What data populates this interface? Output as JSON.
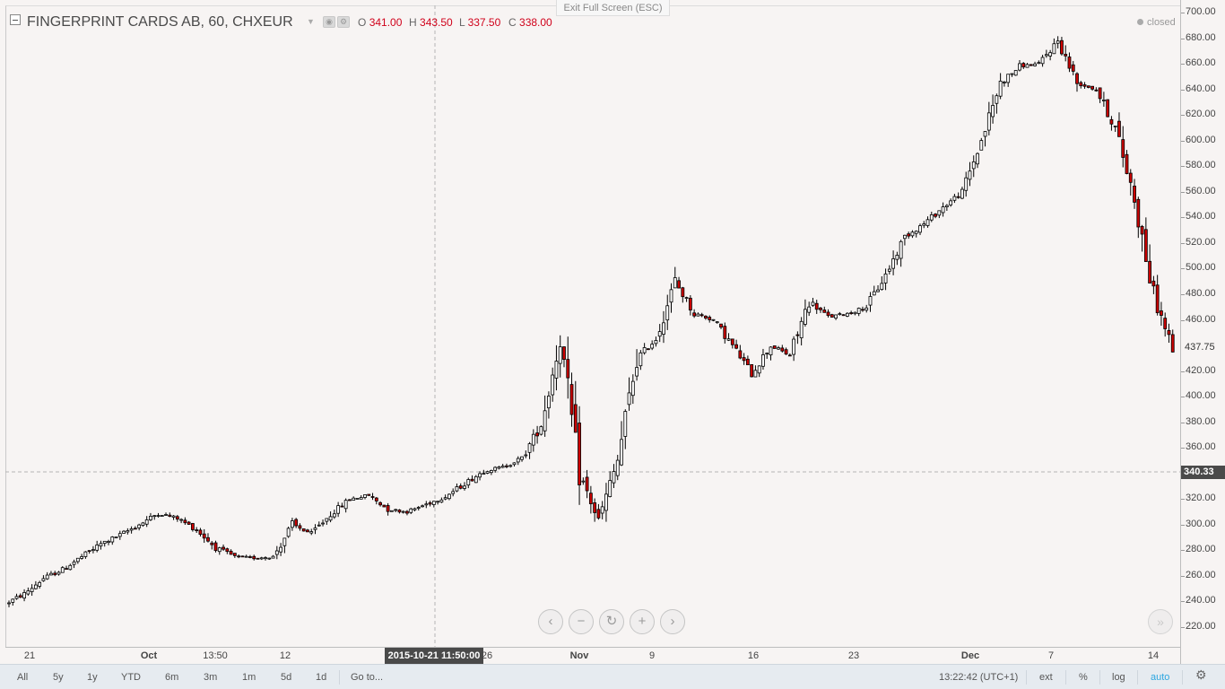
{
  "legend": {
    "title": "FINGERPRINT CARDS AB, 60, CHXEUR",
    "o_label": "O",
    "o_value": "341.00",
    "h_label": "H",
    "h_value": "343.50",
    "l_label": "L",
    "l_value": "337.50",
    "c_label": "C",
    "c_value": "338.00"
  },
  "exit_fullscreen": "Exit Full Screen (ESC)",
  "status": "closed",
  "price_axis": {
    "ticks": [
      "700.00",
      "680.00",
      "660.00",
      "640.00",
      "620.00",
      "600.00",
      "580.00",
      "560.00",
      "540.00",
      "520.00",
      "500.00",
      "480.00",
      "460.00",
      "420.00",
      "400.00",
      "380.00",
      "360.00",
      "320.00",
      "300.00",
      "280.00",
      "260.00",
      "240.00",
      "220.00"
    ],
    "current_price": "437.75",
    "crosshair_price": "340.33"
  },
  "time_axis": {
    "ticks": [
      {
        "label": "21",
        "bold": false
      },
      {
        "label": "Oct",
        "bold": true
      },
      {
        "label": "13:50",
        "bold": false
      },
      {
        "label": "12",
        "bold": false
      },
      {
        "label": "26",
        "bold": false
      },
      {
        "label": "Nov",
        "bold": true
      },
      {
        "label": "9",
        "bold": false
      },
      {
        "label": "16",
        "bold": false
      },
      {
        "label": "23",
        "bold": false
      },
      {
        "label": "Dec",
        "bold": true
      },
      {
        "label": "7",
        "bold": false
      },
      {
        "label": "14",
        "bold": false
      }
    ],
    "crosshair_time": "2015-10-21 11:50:00"
  },
  "bottom_bar": {
    "ranges": [
      "All",
      "5y",
      "1y",
      "YTD",
      "6m",
      "3m",
      "1m",
      "5d",
      "1d"
    ],
    "goto": "Go to...",
    "clock": "13:22:42 (UTC+1)",
    "ext": "ext",
    "percent": "%",
    "log": "log",
    "auto": "auto"
  },
  "nav": {
    "left": "‹",
    "zoom_out": "−",
    "reset": "↻",
    "zoom_in": "+",
    "right": "›",
    "scroll_end": "»"
  },
  "colors": {
    "up_fill": "#ffffff",
    "down_fill": "#cc0000",
    "wick": "#000000",
    "auto_active": "#2ea7e0",
    "crosshair": "#9a9a9a"
  },
  "chart_data": {
    "type": "candlestick",
    "symbol": "FINGERPRINT CARDS AB",
    "interval": "60",
    "currency": "CHXEUR",
    "ylim": [
      210,
      710
    ],
    "x_range": [
      "2015-09-21",
      "2015-12-15"
    ],
    "close_path": [
      [
        "2015-09-21",
        238
      ],
      [
        "2015-09-22",
        246
      ],
      [
        "2015-09-23",
        258
      ],
      [
        "2015-09-24",
        265
      ],
      [
        "2015-09-25",
        275
      ],
      [
        "2015-09-28",
        285
      ],
      [
        "2015-09-29",
        292
      ],
      [
        "2015-09-30",
        300
      ],
      [
        "2015-10-01",
        309
      ],
      [
        "2015-10-02",
        305
      ],
      [
        "2015-10-05",
        296
      ],
      [
        "2015-10-06",
        282
      ],
      [
        "2015-10-07",
        275
      ],
      [
        "2015-10-08",
        274
      ],
      [
        "2015-10-09",
        275
      ],
      [
        "2015-10-12",
        300
      ],
      [
        "2015-10-13",
        293
      ],
      [
        "2015-10-14",
        308
      ],
      [
        "2015-10-15",
        320
      ],
      [
        "2015-10-16",
        323
      ],
      [
        "2015-10-19",
        312
      ],
      [
        "2015-10-20",
        310
      ],
      [
        "2015-10-21",
        316
      ],
      [
        "2015-10-22",
        322
      ],
      [
        "2015-10-23",
        332
      ],
      [
        "2015-10-26",
        342
      ],
      [
        "2015-10-27",
        345
      ],
      [
        "2015-10-28",
        352
      ],
      [
        "2015-10-29",
        378
      ],
      [
        "2015-10-30",
        445
      ],
      [
        "2015-11-02",
        340
      ],
      [
        "2015-11-03",
        303
      ],
      [
        "2015-11-04",
        350
      ],
      [
        "2015-11-05",
        430
      ],
      [
        "2015-11-06",
        445
      ],
      [
        "2015-11-09",
        490
      ],
      [
        "2015-11-10",
        465
      ],
      [
        "2015-11-11",
        460
      ],
      [
        "2015-11-12",
        440
      ],
      [
        "2015-11-13",
        418
      ],
      [
        "2015-11-16",
        440
      ],
      [
        "2015-11-17",
        432
      ],
      [
        "2015-11-18",
        475
      ],
      [
        "2015-11-19",
        462
      ],
      [
        "2015-11-20",
        465
      ],
      [
        "2015-11-23",
        470
      ],
      [
        "2015-11-24",
        495
      ],
      [
        "2015-11-25",
        525
      ],
      [
        "2015-11-26",
        535
      ],
      [
        "2015-11-27",
        548
      ],
      [
        "2015-11-30",
        560
      ],
      [
        "2015-12-01",
        600
      ],
      [
        "2015-12-02",
        645
      ],
      [
        "2015-12-03",
        658
      ],
      [
        "2015-12-04",
        660
      ],
      [
        "2015-12-07",
        678
      ],
      [
        "2015-12-08",
        645
      ],
      [
        "2015-12-09",
        640
      ],
      [
        "2015-12-10",
        610
      ],
      [
        "2015-12-11",
        555
      ],
      [
        "2015-12-14",
        478
      ],
      [
        "2015-12-15",
        437.75
      ]
    ]
  }
}
